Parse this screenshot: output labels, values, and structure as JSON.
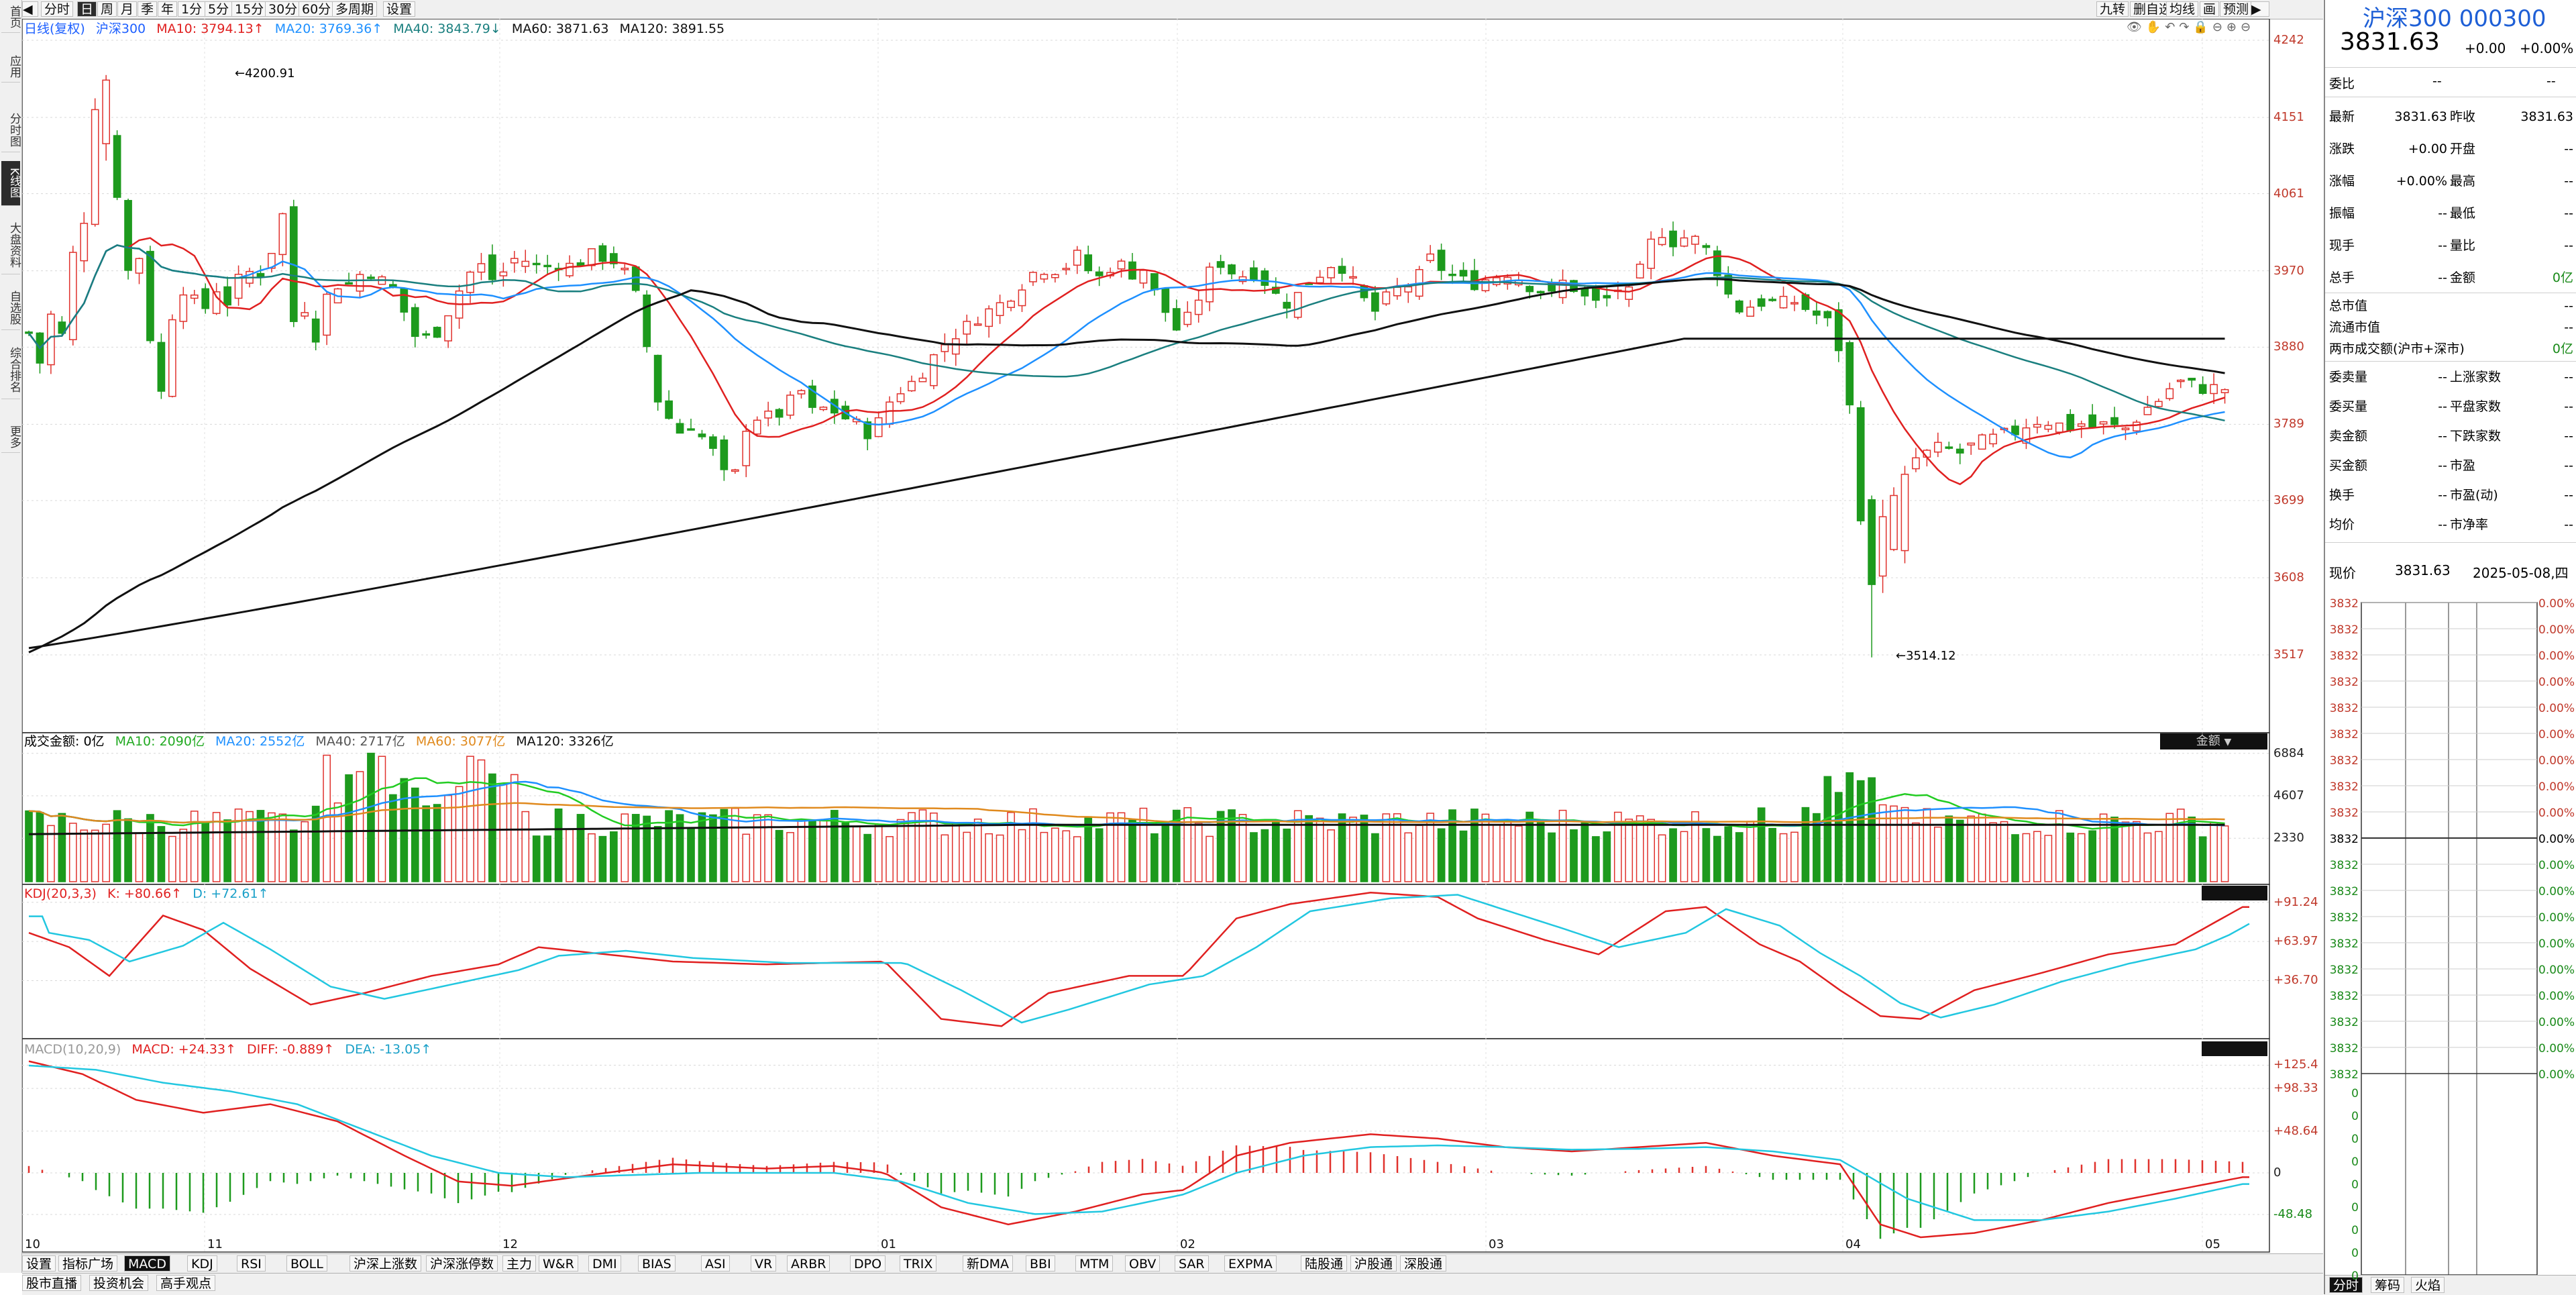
{
  "window": {
    "left_sidebar": [
      "首页",
      "应用",
      "分时图",
      "K线图",
      "大盘资料",
      "自选股",
      "综合排名",
      "更多"
    ],
    "left_active": "K线图",
    "toolbar_left": [
      "分时",
      "日",
      "周",
      "月",
      "季",
      "年",
      "1分",
      "5分",
      "15分",
      "30分",
      "60分",
      "多周期",
      "设置"
    ],
    "toolbar_active": "日",
    "toolbar_right": [
      "九转",
      "删自选",
      "均线",
      "画",
      "预测"
    ]
  },
  "price_panel": {
    "legend": {
      "mode": "日线(复权)",
      "name": "沪深300",
      "ma10": "MA10: 3794.13↑",
      "ma20": "MA20: 3769.36↑",
      "ma40": "MA40: 3843.79↓",
      "ma60": "MA60: 3871.63",
      "ma120": "MA120: 3891.55"
    },
    "y_ticks": [
      "4242",
      "4151",
      "4061",
      "3970",
      "3880",
      "3789",
      "3699",
      "3608",
      "3517"
    ],
    "high_label": "4200.91",
    "low_label": "3514.12"
  },
  "volume_panel": {
    "legend": {
      "title": "成交金额: 0亿",
      "ma10": "MA10: 2090亿",
      "ma20": "MA20: 2552亿",
      "ma40": "MA40: 2717亿",
      "ma60": "MA60: 3077亿",
      "ma120": "MA120: 3326亿"
    },
    "selector": "金额",
    "y_ticks": [
      "6884",
      "4607",
      "2330"
    ]
  },
  "kdj_panel": {
    "legend": {
      "title": "KDJ(20,3,3)",
      "k": "K: +80.66↑",
      "d": "D: +72.61↑"
    },
    "y_ticks": [
      "+91.24",
      "+63.97",
      "+36.70"
    ]
  },
  "macd_panel": {
    "legend": {
      "title": "MACD(10,20,9)",
      "macd": "MACD: +24.33↑",
      "diff": "DIFF: -0.889↑",
      "dea": "DEA: -13.05↑"
    },
    "y_ticks": [
      "+125.4",
      "+98.33",
      "+48.64",
      "0",
      "-48.48"
    ]
  },
  "x_axis": [
    "10",
    "11",
    "12",
    "01",
    "02",
    "03",
    "04",
    "05"
  ],
  "indicator_tabs": [
    "设置",
    "指标广场",
    "MACD",
    "KDJ",
    "RSI",
    "BOLL",
    "沪深上涨数",
    "沪深涨停数",
    "主力",
    "W&R",
    "DMI",
    "BIAS",
    "ASI",
    "VR",
    "ARBR",
    "DPO",
    "TRIX",
    "新DMA",
    "BBI",
    "MTM",
    "OBV",
    "SAR",
    "EXPMA",
    "陆股通",
    "沪股通",
    "深股通"
  ],
  "indicator_active": "MACD",
  "status_tabs": [
    "股市直播",
    "投资机会",
    "高手观点"
  ],
  "right_panel": {
    "title": "沪深300 000300",
    "price": "3831.63",
    "change": "+0.00",
    "change_pct": "+0.00%",
    "weibi_label": "委比",
    "weibi_value": "--",
    "weicha_value": "--",
    "rows_a": [
      {
        "l1": "最新",
        "v1": "3831.63",
        "l2": "昨收",
        "v2": "3831.63"
      },
      {
        "l1": "涨跌",
        "v1": "+0.00",
        "l2": "开盘",
        "v2": "--"
      },
      {
        "l1": "涨幅",
        "v1": "+0.00%",
        "l2": "最高",
        "v2": "--"
      },
      {
        "l1": "振幅",
        "v1": "--",
        "l2": "最低",
        "v2": "--"
      },
      {
        "l1": "现手",
        "v1": "--",
        "l2": "量比",
        "v2": "--"
      },
      {
        "l1": "总手",
        "v1": "--",
        "l2": "金额",
        "v2": "0亿"
      }
    ],
    "rows_b": [
      {
        "l1": "总市值",
        "v1": "--"
      },
      {
        "l1": "流通市值",
        "v1": "--"
      },
      {
        "l1": "两市成交额(沪市+深市)",
        "v1": "0亿"
      }
    ],
    "rows_c": [
      {
        "l1": "委卖量",
        "v1": "--",
        "l2": "上涨家数",
        "v2": "--"
      },
      {
        "l1": "委买量",
        "v1": "--",
        "l2": "平盘家数",
        "v2": "--"
      },
      {
        "l1": "卖金额",
        "v1": "--",
        "l2": "下跌家数",
        "v2": "--"
      },
      {
        "l1": "买金额",
        "v1": "--",
        "l2": "市盈",
        "v2": "--"
      },
      {
        "l1": "换手",
        "v1": "--",
        "l2": "市盈(动)",
        "v2": "--"
      },
      {
        "l1": "均价",
        "v1": "--",
        "l2": "市净率",
        "v2": "--"
      }
    ],
    "now_label": "现价",
    "now_price": "3831.63",
    "now_date": "2025-05-08,四",
    "mini_left": [
      "3832",
      "3832",
      "3832",
      "3832",
      "3832",
      "3832",
      "3832",
      "3832",
      "3832",
      "3832",
      "3832",
      "3832",
      "3832",
      "3832",
      "3832",
      "3832",
      "3832",
      "3832",
      "3832",
      "0",
      "0",
      "0",
      "0",
      "0",
      "0",
      "0",
      "0",
      "0"
    ],
    "mini_right": [
      "0.00%",
      "0.00%",
      "0.00%",
      "0.00%",
      "0.00%",
      "0.00%",
      "0.00%",
      "0.00%",
      "0.00%",
      "0.00%",
      "0.00%",
      "0.00%",
      "0.00%",
      "0.00%",
      "0.00%",
      "0.00%",
      "0.00%",
      "0.00%",
      "0.00%"
    ],
    "bottom_tabs": [
      "分时",
      "筹码",
      "火焰"
    ]
  },
  "colors": {
    "up": "#e0322d",
    "down": "#1d9a1d",
    "ma10": "#e02020",
    "ma20": "#1e90ff",
    "ma40": "#1a7f7f",
    "ma60": "#111111",
    "ma120": "#111111",
    "k_line": "#e02020",
    "d_line": "#22c7e0",
    "vol_ma10": "#22cc22",
    "vol_ma60": "#e08a1e"
  }
}
